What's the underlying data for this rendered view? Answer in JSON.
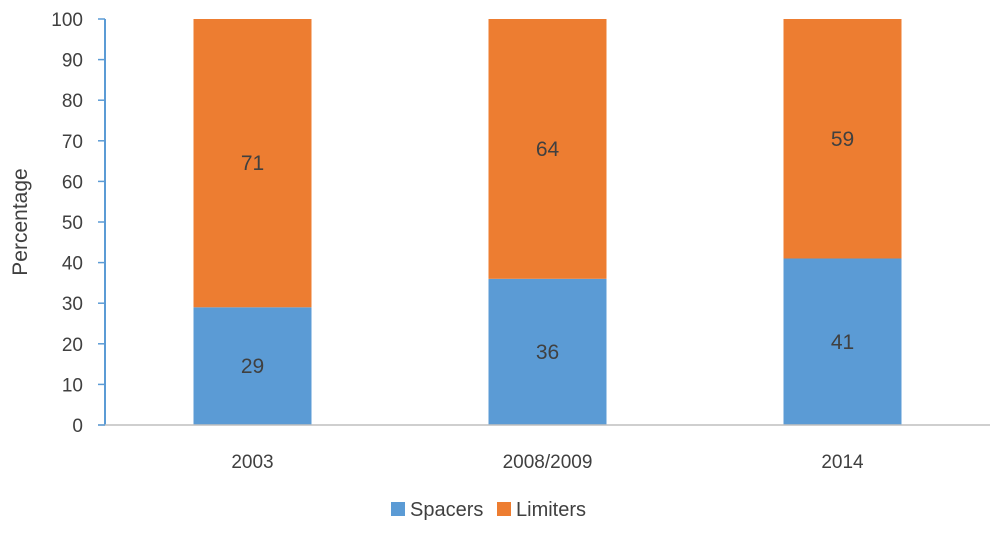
{
  "chart_data": {
    "type": "bar",
    "stacked": true,
    "categories": [
      "2003",
      "2008/2009",
      "2014"
    ],
    "series": [
      {
        "name": "Spacers",
        "values": [
          29,
          36,
          41
        ],
        "color": "#5b9bd5"
      },
      {
        "name": "Limiters",
        "values": [
          71,
          64,
          59
        ],
        "color": "#ed7d31"
      }
    ],
    "data_labels": [
      [
        "29",
        "36",
        "41"
      ],
      [
        "71",
        "64",
        "59"
      ]
    ],
    "ylabel": "Percentage",
    "ylim": [
      0,
      100
    ],
    "yticks": [
      0,
      10,
      20,
      30,
      40,
      50,
      60,
      70,
      80,
      90,
      100
    ],
    "ytick_labels": [
      "0",
      "10",
      "20",
      "30",
      "40",
      "50",
      "60",
      "70",
      "80",
      "90",
      "100"
    ],
    "grid": false,
    "legend": "bottom-center"
  }
}
